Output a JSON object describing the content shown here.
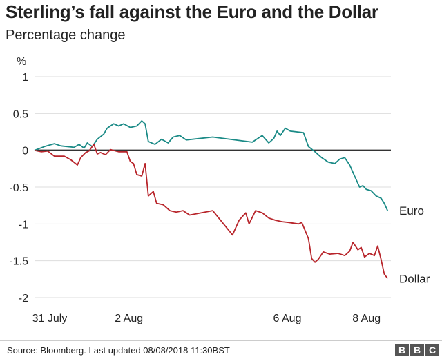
{
  "chart_data": {
    "type": "line",
    "title": "Sterling’s fall against the Euro and the Dollar",
    "subtitle": "Percentage change",
    "ylabel": "%",
    "ylim": [
      -2,
      1
    ],
    "yticks": [
      "1",
      "0.5",
      "0",
      "-0.5",
      "-1",
      "-1.5",
      "-2"
    ],
    "xlim": [
      "2018-07-31",
      "2018-08-08"
    ],
    "xticks": [
      {
        "date": "2018-07-31",
        "label": "31 July"
      },
      {
        "date": "2018-08-02",
        "label": "2 Aug"
      },
      {
        "date": "2018-08-06",
        "label": "6 Aug"
      },
      {
        "date": "2018-08-08",
        "label": "8 Aug"
      }
    ],
    "grid": true,
    "series": [
      {
        "name": "Euro",
        "color": "#1a8a86",
        "points": [
          [
            "2018-07-31 00:00",
            0.0
          ],
          [
            "2018-07-31 06:00",
            0.05
          ],
          [
            "2018-07-31 12:00",
            0.09
          ],
          [
            "2018-07-31 16:00",
            0.06
          ],
          [
            "2018-07-31 20:00",
            0.05
          ],
          [
            "2018-08-01 00:00",
            0.04
          ],
          [
            "2018-08-01 03:00",
            0.08
          ],
          [
            "2018-08-01 06:00",
            0.03
          ],
          [
            "2018-08-01 08:00",
            0.1
          ],
          [
            "2018-08-01 11:00",
            0.05
          ],
          [
            "2018-08-01 14:00",
            0.15
          ],
          [
            "2018-08-01 18:00",
            0.22
          ],
          [
            "2018-08-01 20:00",
            0.3
          ],
          [
            "2018-08-02 00:00",
            0.36
          ],
          [
            "2018-08-02 03:00",
            0.33
          ],
          [
            "2018-08-02 06:00",
            0.36
          ],
          [
            "2018-08-02 10:00",
            0.31
          ],
          [
            "2018-08-02 14:00",
            0.33
          ],
          [
            "2018-08-02 17:00",
            0.4
          ],
          [
            "2018-08-02 19:00",
            0.36
          ],
          [
            "2018-08-02 21:00",
            0.12
          ],
          [
            "2018-08-03 01:00",
            0.08
          ],
          [
            "2018-08-03 05:00",
            0.15
          ],
          [
            "2018-08-03 09:00",
            0.1
          ],
          [
            "2018-08-03 12:00",
            0.18
          ],
          [
            "2018-08-03 16:00",
            0.2
          ],
          [
            "2018-08-03 20:00",
            0.14
          ],
          [
            "2018-08-04 12:00",
            0.18
          ],
          [
            "2018-08-05 12:00",
            0.11
          ],
          [
            "2018-08-05 18:00",
            0.2
          ],
          [
            "2018-08-05 22:00",
            0.1
          ],
          [
            "2018-08-06 01:00",
            0.16
          ],
          [
            "2018-08-06 03:00",
            0.26
          ],
          [
            "2018-08-06 05:00",
            0.2
          ],
          [
            "2018-08-06 08:00",
            0.3
          ],
          [
            "2018-08-06 11:00",
            0.26
          ],
          [
            "2018-08-06 15:00",
            0.25
          ],
          [
            "2018-08-06 19:00",
            0.24
          ],
          [
            "2018-08-06 22:00",
            0.05
          ],
          [
            "2018-08-07 02:00",
            -0.02
          ],
          [
            "2018-08-07 06:00",
            -0.1
          ],
          [
            "2018-08-07 10:00",
            -0.16
          ],
          [
            "2018-08-07 14:00",
            -0.18
          ],
          [
            "2018-08-07 17:00",
            -0.12
          ],
          [
            "2018-08-07 20:00",
            -0.1
          ],
          [
            "2018-08-07 23:00",
            -0.2
          ],
          [
            "2018-08-08 02:00",
            -0.35
          ],
          [
            "2018-08-08 05:00",
            -0.5
          ],
          [
            "2018-08-08 07:00",
            -0.48
          ],
          [
            "2018-08-08 09:00",
            -0.53
          ],
          [
            "2018-08-08 12:00",
            -0.55
          ],
          [
            "2018-08-08 15:00",
            -0.62
          ],
          [
            "2018-08-08 18:00",
            -0.65
          ],
          [
            "2018-08-08 20:00",
            -0.72
          ],
          [
            "2018-08-08 22:00",
            -0.82
          ]
        ]
      },
      {
        "name": "Dollar",
        "color": "#b8252b",
        "points": [
          [
            "2018-07-31 00:00",
            0.0
          ],
          [
            "2018-07-31 04:00",
            -0.02
          ],
          [
            "2018-07-31 08:00",
            -0.01
          ],
          [
            "2018-07-31 12:00",
            -0.08
          ],
          [
            "2018-07-31 18:00",
            -0.08
          ],
          [
            "2018-07-31 22:00",
            -0.13
          ],
          [
            "2018-08-01 02:00",
            -0.2
          ],
          [
            "2018-08-01 04:00",
            -0.1
          ],
          [
            "2018-08-01 07:00",
            -0.03
          ],
          [
            "2018-08-01 09:00",
            -0.01
          ],
          [
            "2018-08-01 12:00",
            0.08
          ],
          [
            "2018-08-01 14:00",
            -0.05
          ],
          [
            "2018-08-01 16:00",
            -0.03
          ],
          [
            "2018-08-01 19:00",
            -0.06
          ],
          [
            "2018-08-01 22:00",
            0.01
          ],
          [
            "2018-08-02 03:00",
            -0.02
          ],
          [
            "2018-08-02 08:00",
            -0.02
          ],
          [
            "2018-08-02 10:00",
            -0.15
          ],
          [
            "2018-08-02 12:00",
            -0.18
          ],
          [
            "2018-08-02 14:00",
            -0.33
          ],
          [
            "2018-08-02 17:00",
            -0.35
          ],
          [
            "2018-08-02 19:00",
            -0.18
          ],
          [
            "2018-08-02 21:00",
            -0.62
          ],
          [
            "2018-08-03 00:00",
            -0.56
          ],
          [
            "2018-08-03 02:00",
            -0.72
          ],
          [
            "2018-08-03 06:00",
            -0.74
          ],
          [
            "2018-08-03 10:00",
            -0.82
          ],
          [
            "2018-08-03 14:00",
            -0.84
          ],
          [
            "2018-08-03 18:00",
            -0.82
          ],
          [
            "2018-08-03 22:00",
            -0.88
          ],
          [
            "2018-08-04 12:00",
            -0.82
          ],
          [
            "2018-08-05 00:00",
            -1.15
          ],
          [
            "2018-08-05 04:00",
            -0.95
          ],
          [
            "2018-08-05 08:00",
            -0.85
          ],
          [
            "2018-08-05 10:00",
            -1.0
          ],
          [
            "2018-08-05 14:00",
            -0.82
          ],
          [
            "2018-08-05 18:00",
            -0.85
          ],
          [
            "2018-08-05 22:00",
            -0.92
          ],
          [
            "2018-08-06 02:00",
            -0.95
          ],
          [
            "2018-08-06 06:00",
            -0.97
          ],
          [
            "2018-08-06 10:00",
            -0.98
          ],
          [
            "2018-08-06 16:00",
            -1.0
          ],
          [
            "2018-08-06 18:00",
            -0.98
          ],
          [
            "2018-08-06 22:00",
            -1.2
          ],
          [
            "2018-08-07 00:00",
            -1.47
          ],
          [
            "2018-08-07 02:00",
            -1.52
          ],
          [
            "2018-08-07 04:00",
            -1.48
          ],
          [
            "2018-08-07 07:00",
            -1.38
          ],
          [
            "2018-08-07 11:00",
            -1.41
          ],
          [
            "2018-08-07 16:00",
            -1.4
          ],
          [
            "2018-08-07 20:00",
            -1.43
          ],
          [
            "2018-08-07 23:00",
            -1.37
          ],
          [
            "2018-08-08 01:00",
            -1.25
          ],
          [
            "2018-08-08 04:00",
            -1.35
          ],
          [
            "2018-08-08 06:00",
            -1.32
          ],
          [
            "2018-08-08 08:00",
            -1.45
          ],
          [
            "2018-08-08 11:00",
            -1.4
          ],
          [
            "2018-08-08 14:00",
            -1.43
          ],
          [
            "2018-08-08 16:00",
            -1.3
          ],
          [
            "2018-08-08 18:00",
            -1.48
          ],
          [
            "2018-08-08 20:00",
            -1.68
          ],
          [
            "2018-08-08 22:00",
            -1.74
          ]
        ]
      }
    ]
  },
  "footer": {
    "source": "Source: Bloomberg. Last updated 08/08/2018 11:30BST",
    "logo_letters": [
      "B",
      "B",
      "C"
    ]
  }
}
